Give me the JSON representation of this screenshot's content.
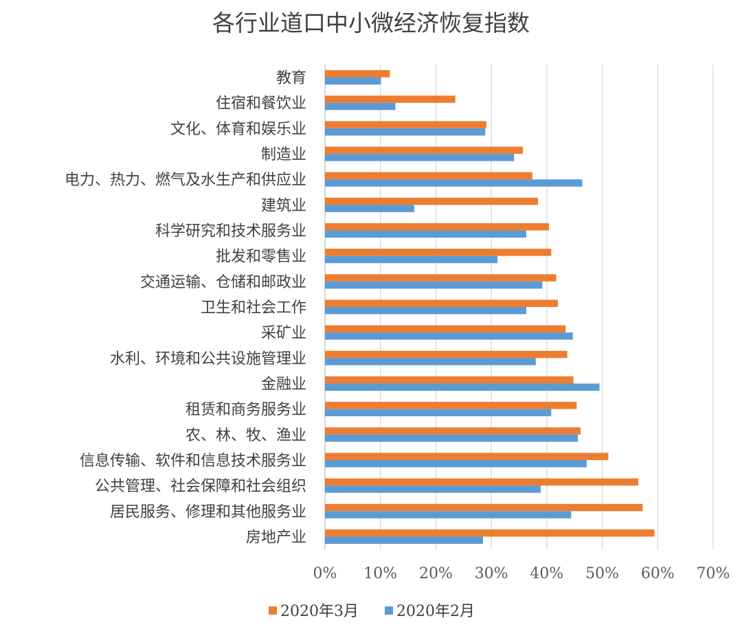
{
  "chart_data": {
    "type": "bar",
    "orientation": "horizontal",
    "title": "各行业道口中小微经济恢复指数",
    "xlabel": "",
    "ylabel": "",
    "xlim": [
      0,
      0.7
    ],
    "xticks": [
      "0%",
      "10%",
      "20%",
      "30%",
      "40%",
      "50%",
      "60%",
      "70%"
    ],
    "grid": true,
    "legend_position": "bottom",
    "categories": [
      "教育",
      "住宿和餐饮业",
      "文化、体育和娱乐业",
      "制造业",
      "电力、热力、燃气及水生产和供应业",
      "建筑业",
      "科学研究和技术服务业",
      "批发和零售业",
      "交通运输、仓储和邮政业",
      "卫生和社会工作",
      "采矿业",
      "水利、环境和公共设施管理业",
      "金融业",
      "租赁和商务服务业",
      "农、林、牧、渔业",
      "信息传输、软件和信息技术服务业",
      "公共管理、社会保障和社会组织",
      "居民服务、修理和其他服务业",
      "房地产业"
    ],
    "series": [
      {
        "name": "2020年3月",
        "color": "#ED7D31",
        "values": [
          0.117,
          0.235,
          0.291,
          0.357,
          0.374,
          0.384,
          0.404,
          0.408,
          0.417,
          0.42,
          0.434,
          0.437,
          0.448,
          0.454,
          0.461,
          0.511,
          0.565,
          0.573,
          0.594
        ]
      },
      {
        "name": "2020年2月",
        "color": "#5B9BD5",
        "values": [
          0.101,
          0.127,
          0.289,
          0.341,
          0.464,
          0.161,
          0.363,
          0.311,
          0.392,
          0.363,
          0.447,
          0.38,
          0.495,
          0.408,
          0.456,
          0.472,
          0.389,
          0.444,
          0.285
        ]
      }
    ]
  }
}
